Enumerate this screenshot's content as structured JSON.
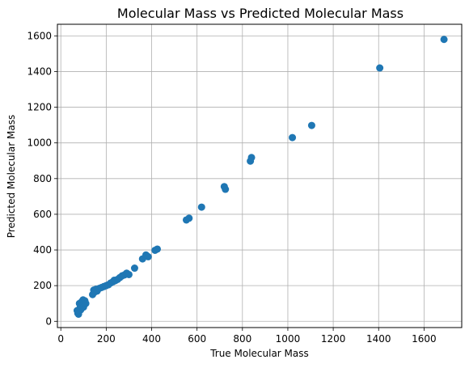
{
  "chart_data": {
    "type": "scatter",
    "title": "Molecular Mass vs Predicted Molecular Mass",
    "xlabel": "True Molecular Mass",
    "ylabel": "Predicted Molecular Mass",
    "xlim": [
      -15,
      1766
    ],
    "ylim": [
      -35,
      1665
    ],
    "x_ticks": [
      0,
      200,
      400,
      600,
      800,
      1000,
      1200,
      1400,
      1600
    ],
    "y_ticks": [
      0,
      200,
      400,
      600,
      800,
      1000,
      1200,
      1400,
      1600
    ],
    "grid": true,
    "marker_color": "#1f77b4",
    "series": [
      {
        "points": [
          [
            72,
            60
          ],
          [
            75,
            45
          ],
          [
            78,
            40
          ],
          [
            80,
            55
          ],
          [
            82,
            100
          ],
          [
            85,
            75
          ],
          [
            88,
            65
          ],
          [
            90,
            85
          ],
          [
            92,
            110
          ],
          [
            95,
            95
          ],
          [
            98,
            120
          ],
          [
            100,
            80
          ],
          [
            103,
            105
          ],
          [
            106,
            115
          ],
          [
            110,
            100
          ],
          [
            140,
            150
          ],
          [
            145,
            175
          ],
          [
            150,
            165
          ],
          [
            155,
            180
          ],
          [
            160,
            170
          ],
          [
            170,
            185
          ],
          [
            180,
            190
          ],
          [
            190,
            195
          ],
          [
            200,
            200
          ],
          [
            210,
            205
          ],
          [
            220,
            215
          ],
          [
            230,
            222
          ],
          [
            235,
            230
          ],
          [
            240,
            228
          ],
          [
            250,
            235
          ],
          [
            260,
            245
          ],
          [
            270,
            255
          ],
          [
            280,
            260
          ],
          [
            290,
            270
          ],
          [
            300,
            262
          ],
          [
            325,
            298
          ],
          [
            360,
            350
          ],
          [
            375,
            372
          ],
          [
            385,
            362
          ],
          [
            415,
            398
          ],
          [
            425,
            405
          ],
          [
            553,
            568
          ],
          [
            565,
            578
          ],
          [
            620,
            640
          ],
          [
            720,
            755
          ],
          [
            725,
            740
          ],
          [
            835,
            898
          ],
          [
            840,
            918
          ],
          [
            1020,
            1030
          ],
          [
            1105,
            1098
          ],
          [
            1405,
            1420
          ],
          [
            1688,
            1580
          ]
        ]
      }
    ]
  }
}
